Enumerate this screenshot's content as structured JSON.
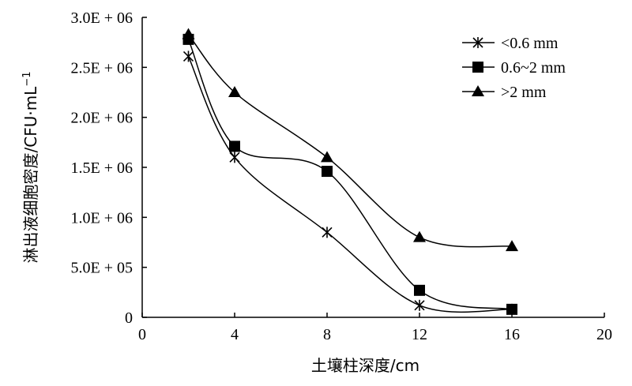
{
  "chart_data": {
    "type": "line",
    "x": [
      2,
      4,
      8,
      12,
      16
    ],
    "series": [
      {
        "name": "<0.6 mm",
        "marker": "asterisk",
        "values": [
          2610000,
          1600000,
          850000,
          120000,
          80000
        ]
      },
      {
        "name": "0.6~2 mm",
        "marker": "square",
        "values": [
          2780000,
          1710000,
          1460000,
          270000,
          80000
        ]
      },
      {
        "name": ">2 mm",
        "marker": "triangle",
        "values": [
          2830000,
          2250000,
          1600000,
          800000,
          710000
        ]
      }
    ],
    "xlabel": "土壤柱深度/cm",
    "ylabel": "淋出液细胞密度/CFU·mL",
    "ylabel_sup": "−1",
    "xlim": [
      0,
      20
    ],
    "ylim": [
      0,
      3000000
    ],
    "xticks": [
      0,
      4,
      8,
      12,
      16,
      20
    ],
    "yticks": [
      0,
      500000,
      1000000,
      1500000,
      2000000,
      2500000,
      3000000
    ],
    "ytick_labels": [
      "0",
      "5.0E + 05",
      "1.0E + 06",
      "1.5E + 06",
      "2.0E + 06",
      "2.5E + 06",
      "3.0E + 06"
    ],
    "xtick_labels": [
      "0",
      "4",
      "8",
      "12",
      "16",
      "20"
    ],
    "grid": false,
    "legend_position": "top-right",
    "line_color": "#000000"
  }
}
